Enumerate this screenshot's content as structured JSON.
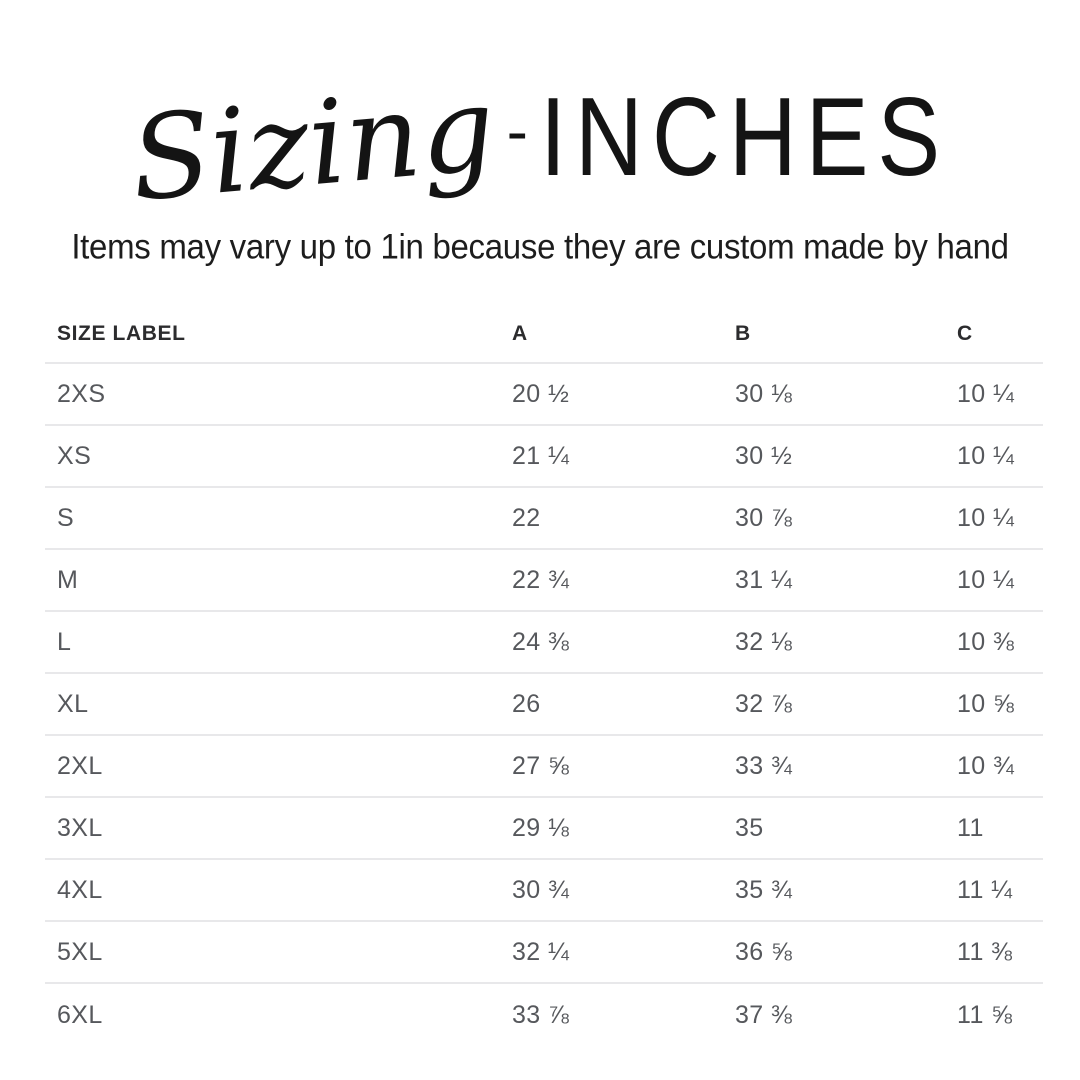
{
  "title": {
    "script": "Sizing",
    "separator": "-",
    "main": "INCHES"
  },
  "subtitle": "Items may vary up to 1in because they are custom made by hand",
  "table": {
    "headers": {
      "label": "SIZE LABEL",
      "a": "A",
      "b": "B",
      "c": "C"
    },
    "rows": [
      {
        "label": "2XS",
        "a": "20 ½",
        "b": "30 ⅛",
        "c": "10 ¼"
      },
      {
        "label": "XS",
        "a": "21 ¼",
        "b": "30 ½",
        "c": "10 ¼"
      },
      {
        "label": "S",
        "a": "22",
        "b": "30 ⅞",
        "c": "10 ¼"
      },
      {
        "label": "M",
        "a": "22 ¾",
        "b": "31 ¼",
        "c": "10 ¼"
      },
      {
        "label": "L",
        "a": "24 ⅜",
        "b": "32 ⅛",
        "c": "10 ⅜"
      },
      {
        "label": "XL",
        "a": "26",
        "b": "32 ⅞",
        "c": "10 ⅝"
      },
      {
        "label": "2XL",
        "a": "27 ⅝",
        "b": "33 ¾",
        "c": "10 ¾"
      },
      {
        "label": "3XL",
        "a": "29 ⅛",
        "b": "35",
        "c": "11"
      },
      {
        "label": "4XL",
        "a": "30 ¾",
        "b": "35 ¾",
        "c": "11 ¼"
      },
      {
        "label": "5XL",
        "a": "32 ¼",
        "b": "36 ⅝",
        "c": "11 ⅜"
      },
      {
        "label": "6XL",
        "a": "33 ⅞",
        "b": "37 ⅜",
        "c": "11 ⅝"
      }
    ]
  },
  "colors": {
    "background": "#ffffff",
    "title_text": "#141414",
    "subtitle_text": "#1d1d1d",
    "header_text": "#2c2c2e",
    "row_text": "#56585c",
    "divider": "#e8e8ea"
  }
}
